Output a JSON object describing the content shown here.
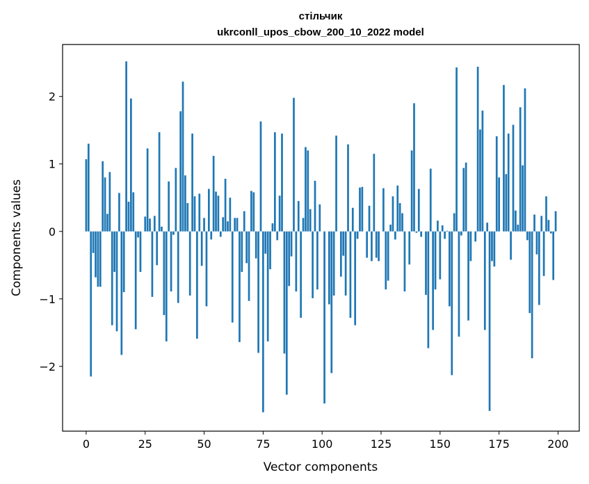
{
  "chart_data": {
    "type": "bar",
    "title": "стільчик",
    "subtitle": "ukrconll_upos_cbow_200_10_2022 model",
    "xlabel": "Vector components",
    "ylabel": "Components values",
    "xlim": [
      -10,
      209
    ],
    "ylim": [
      -2.96,
      2.77
    ],
    "xticks": [
      0,
      25,
      50,
      75,
      100,
      125,
      150,
      175,
      200
    ],
    "xtick_labels": [
      "0",
      "25",
      "50",
      "75",
      "100",
      "125",
      "150",
      "175",
      "200"
    ],
    "yticks": [
      -2,
      -1,
      0,
      1,
      2
    ],
    "ytick_labels": [
      "−2",
      "−1",
      "0",
      "1",
      "2"
    ],
    "bar_color": "#1f77b4",
    "grid": false,
    "legend": false,
    "x": [
      0,
      1,
      2,
      3,
      4,
      5,
      6,
      7,
      8,
      9,
      10,
      11,
      12,
      13,
      14,
      15,
      16,
      17,
      18,
      19,
      20,
      21,
      22,
      23,
      24,
      25,
      26,
      27,
      28,
      29,
      30,
      31,
      32,
      33,
      34,
      35,
      36,
      37,
      38,
      39,
      40,
      41,
      42,
      43,
      44,
      45,
      46,
      47,
      48,
      49,
      50,
      51,
      52,
      53,
      54,
      55,
      56,
      57,
      58,
      59,
      60,
      61,
      62,
      63,
      64,
      65,
      66,
      67,
      68,
      69,
      70,
      71,
      72,
      73,
      74,
      75,
      76,
      77,
      78,
      79,
      80,
      81,
      82,
      83,
      84,
      85,
      86,
      87,
      88,
      89,
      90,
      91,
      92,
      93,
      94,
      95,
      96,
      97,
      98,
      99,
      100,
      101,
      102,
      103,
      104,
      105,
      106,
      107,
      108,
      109,
      110,
      111,
      112,
      113,
      114,
      115,
      116,
      117,
      118,
      119,
      120,
      121,
      122,
      123,
      124,
      125,
      126,
      127,
      128,
      129,
      130,
      131,
      132,
      133,
      134,
      135,
      136,
      137,
      138,
      139,
      140,
      141,
      142,
      143,
      144,
      145,
      146,
      147,
      148,
      149,
      150,
      151,
      152,
      153,
      154,
      155,
      156,
      157,
      158,
      159,
      160,
      161,
      162,
      163,
      164,
      165,
      166,
      167,
      168,
      169,
      170,
      171,
      172,
      173,
      174,
      175,
      176,
      177,
      178,
      179,
      180,
      181,
      182,
      183,
      184,
      185,
      186,
      187,
      188,
      189,
      190,
      191,
      192,
      193,
      194,
      195,
      196,
      197,
      198,
      199
    ],
    "values": [
      1.07,
      1.3,
      -2.15,
      -0.32,
      -0.68,
      -0.82,
      -0.82,
      1.04,
      0.8,
      0.26,
      0.88,
      -1.39,
      -0.6,
      -1.48,
      0.57,
      -1.83,
      -0.9,
      2.52,
      0.44,
      1.97,
      0.58,
      -1.45,
      -0.09,
      -0.6,
      0.0,
      0.22,
      1.23,
      0.19,
      -0.97,
      0.23,
      -0.5,
      1.47,
      0.07,
      -1.24,
      -1.63,
      0.74,
      -0.89,
      -0.05,
      0.94,
      -1.06,
      1.78,
      2.22,
      0.83,
      0.42,
      -0.95,
      1.45,
      0.52,
      -1.59,
      0.56,
      -0.51,
      0.2,
      -1.11,
      0.63,
      -0.12,
      1.12,
      0.59,
      0.53,
      -0.08,
      0.21,
      0.78,
      0.15,
      0.5,
      -1.35,
      0.2,
      0.2,
      -1.64,
      -0.6,
      0.3,
      -0.47,
      -1.03,
      0.6,
      0.58,
      -0.4,
      -1.8,
      1.63,
      -2.68,
      -0.33,
      -1.63,
      -0.56,
      0.12,
      1.47,
      -0.13,
      0.53,
      1.45,
      -1.81,
      -2.42,
      -0.81,
      -0.37,
      1.98,
      -0.89,
      0.45,
      -1.28,
      0.2,
      1.25,
      1.2,
      0.33,
      -0.99,
      0.75,
      -0.86,
      0.4,
      0.0,
      -2.55,
      0.0,
      -1.08,
      -2.1,
      -0.95,
      1.42,
      0.0,
      -0.67,
      -0.36,
      -0.95,
      1.29,
      -1.28,
      0.35,
      -1.39,
      -0.11,
      0.65,
      0.66,
      0.0,
      -0.39,
      0.38,
      -0.44,
      1.15,
      -0.39,
      -0.44,
      0.0,
      0.64,
      -0.86,
      -0.73,
      0.1,
      0.52,
      -0.12,
      0.68,
      0.42,
      0.27,
      -0.89,
      0.0,
      -0.49,
      1.2,
      1.9,
      -0.02,
      0.63,
      -0.08,
      0.0,
      -0.94,
      -1.73,
      0.93,
      -1.46,
      -0.86,
      0.16,
      -0.71,
      0.09,
      -0.11,
      0.01,
      -1.11,
      -2.13,
      0.27,
      2.43,
      -1.56,
      -0.06,
      0.94,
      1.02,
      -1.32,
      -0.44,
      0.0,
      -0.15,
      2.44,
      1.51,
      1.79,
      -1.46,
      0.13,
      -2.66,
      -0.44,
      -0.52,
      1.41,
      0.8,
      0.0,
      2.17,
      0.85,
      1.45,
      -0.42,
      1.58,
      0.31,
      0.1,
      1.84,
      0.98,
      2.12,
      -0.13,
      -1.21,
      -1.88,
      0.25,
      -0.34,
      -1.09,
      0.23,
      -0.66,
      0.52,
      0.17,
      -0.03,
      -0.72,
      0.3
    ]
  }
}
